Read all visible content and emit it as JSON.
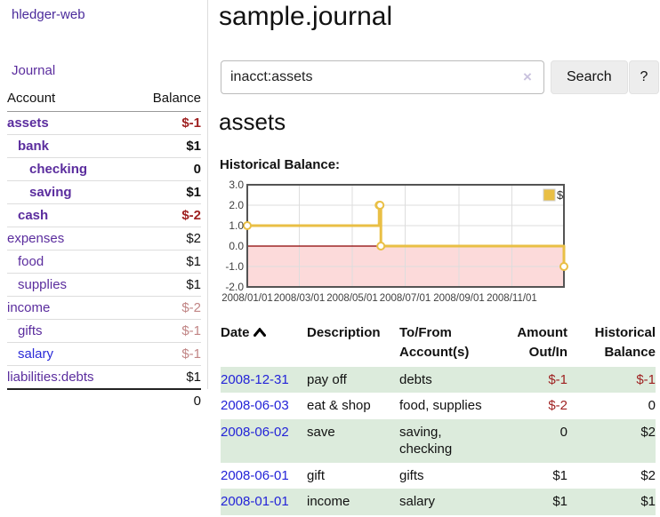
{
  "brand": {
    "title": "hledger-web"
  },
  "sidebar": {
    "journal_link": "Journal",
    "table": {
      "account_header": "Account",
      "balance_header": "Balance",
      "rows": [
        {
          "name": "assets",
          "balance": "$-1",
          "level": 0,
          "bold": true,
          "name_color": "purple",
          "balance_style": "negative"
        },
        {
          "name": "bank",
          "balance": "$1",
          "level": 1,
          "bold": true,
          "name_color": "purple",
          "balance_style": "normal"
        },
        {
          "name": "checking",
          "balance": "0",
          "level": 2,
          "bold": true,
          "name_color": "purple",
          "balance_style": "normal"
        },
        {
          "name": "saving",
          "balance": "$1",
          "level": 2,
          "bold": true,
          "name_color": "purple",
          "balance_style": "normal"
        },
        {
          "name": "cash",
          "balance": "$-2",
          "level": 1,
          "bold": true,
          "name_color": "purple",
          "balance_style": "negative"
        },
        {
          "name": "expenses",
          "balance": "$2",
          "level": 0,
          "bold": false,
          "name_color": "purple",
          "balance_style": "normal"
        },
        {
          "name": "food",
          "balance": "$1",
          "level": 1,
          "bold": false,
          "name_color": "purple",
          "balance_style": "normal"
        },
        {
          "name": "supplies",
          "balance": "$1",
          "level": 1,
          "bold": false,
          "name_color": "purple",
          "balance_style": "normal"
        },
        {
          "name": "income",
          "balance": "$-2",
          "level": 0,
          "bold": false,
          "name_color": "purple",
          "balance_style": "negative-faded"
        },
        {
          "name": "gifts",
          "balance": "$-1",
          "level": 1,
          "bold": false,
          "name_color": "purple",
          "balance_style": "negative-faded"
        },
        {
          "name": "salary",
          "balance": "$-1",
          "level": 1,
          "bold": false,
          "name_color": "blue",
          "balance_style": "negative-faded"
        },
        {
          "name": "liabilities:debts",
          "balance": "$1",
          "level": 0,
          "bold": false,
          "name_color": "purple",
          "balance_style": "normal"
        }
      ],
      "total": "0"
    }
  },
  "header": {
    "title": "sample.journal"
  },
  "search": {
    "value": "inacct:assets",
    "clear_icon": "×",
    "button_label": "Search",
    "help_label": "?"
  },
  "account_page": {
    "title": "assets",
    "chart_label": "Historical Balance:"
  },
  "chart_data": {
    "type": "line",
    "step": true,
    "title": "Historical Balance",
    "xlim": [
      "2008-01-01",
      "2008-12-31"
    ],
    "ylim": [
      -2,
      3
    ],
    "y_ticks": [
      3.0,
      2.0,
      1.0,
      0.0,
      -1.0,
      -2.0
    ],
    "x_ticks": [
      {
        "date": "2008-01-01",
        "label": "2008/01/01"
      },
      {
        "date": "2008-03-01",
        "label": "2008/03/01"
      },
      {
        "date": "2008-05-01",
        "label": "2008/05/01"
      },
      {
        "date": "2008-07-01",
        "label": "2008/07/01"
      },
      {
        "date": "2008-09-01",
        "label": "2008/09/01"
      },
      {
        "date": "2008-11-01",
        "label": "2008/11/01"
      }
    ],
    "series": [
      {
        "name": "$",
        "color": "#e9bf45",
        "marker_fill": "#ffffff",
        "points": [
          {
            "date": "2008-01-01",
            "value": 1
          },
          {
            "date": "2008-06-01",
            "value": 2
          },
          {
            "date": "2008-06-02",
            "value": 2
          },
          {
            "date": "2008-06-03",
            "value": 0
          },
          {
            "date": "2008-12-31",
            "value": -1
          }
        ]
      }
    ],
    "legend": {
      "label": "$",
      "position": "top-right"
    },
    "grid": true,
    "grid_color": "#dddddd",
    "border_color": "#545454",
    "zero_line_color": "#8b0000",
    "negative_region_fill": "#fcdada"
  },
  "register": {
    "headers": {
      "date": "Date",
      "description": "Description",
      "accounts": "To/From Account(s)",
      "amount": "Amount Out/In",
      "balance": "Historical Balance"
    },
    "rows": [
      {
        "date": "2008-12-31",
        "description": "pay off",
        "accounts": "debts",
        "amount": "$-1",
        "amount_negative": true,
        "balance": "$-1",
        "balance_negative": true,
        "highlight": true
      },
      {
        "date": "2008-06-03",
        "description": "eat & shop",
        "accounts": "food, supplies",
        "amount": "$-2",
        "amount_negative": true,
        "balance": "0",
        "balance_negative": false,
        "highlight": false
      },
      {
        "date": "2008-06-02",
        "description": "save",
        "accounts": "saving, checking",
        "amount": "0",
        "amount_negative": false,
        "balance": "$2",
        "balance_negative": false,
        "highlight": true
      },
      {
        "date": "2008-06-01",
        "description": "gift",
        "accounts": "gifts",
        "amount": "$1",
        "amount_negative": false,
        "balance": "$2",
        "balance_negative": false,
        "highlight": false
      },
      {
        "date": "2008-01-01",
        "description": "income",
        "accounts": "salary",
        "amount": "$1",
        "amount_negative": false,
        "balance": "$1",
        "balance_negative": false,
        "highlight": true
      }
    ]
  },
  "colors": {
    "accent_purple": "#5b2d9e",
    "link_blue": "#2323d8",
    "negative": "#9e1f1f",
    "negative_faded": "#c18585",
    "row_highlight_green": "#dcebdc",
    "chart_line": "#e9bf45"
  }
}
